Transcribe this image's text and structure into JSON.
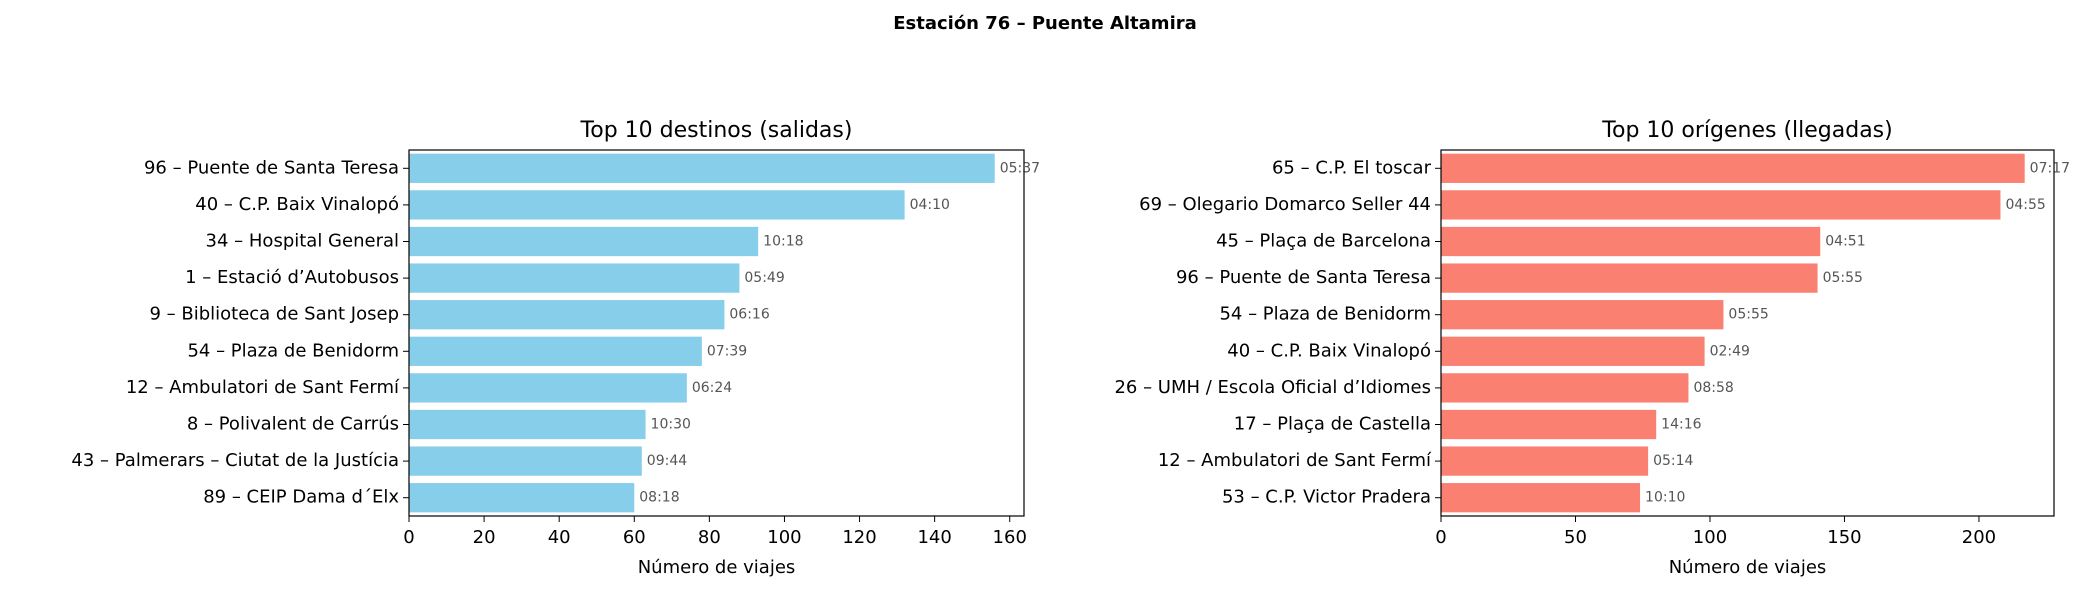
{
  "title": "Estación 76 – Puente Altamira",
  "chart_data": [
    {
      "type": "barh",
      "title": "Top 10 destinos (salidas)",
      "xlabel": "Número de viajes",
      "color": "#87ceeb",
      "categories": [
        "96 – Puente de Santa Teresa",
        "40 – C.P. Baix Vinalopó",
        "34 – Hospital General",
        "1 – Estació d’Autobusos",
        "9 – Biblioteca de Sant Josep",
        "54 – Plaza de Benidorm",
        "12 – Ambulatori de Sant Fermí",
        "8 – Polivalent de Carrús",
        "43 – Palmerars – Ciutat de la Justícia",
        "89 – CEIP Dama d´Elx"
      ],
      "values": [
        156,
        132,
        93,
        88,
        84,
        78,
        74,
        63,
        62,
        60
      ],
      "annotations": [
        "05:37",
        "04:10",
        "10:18",
        "05:49",
        "06:16",
        "07:39",
        "06:24",
        "10:30",
        "09:44",
        "08:18"
      ],
      "xlim": [
        0,
        163.8
      ],
      "xticks": [
        0,
        20,
        40,
        60,
        80,
        100,
        120,
        140,
        160
      ]
    },
    {
      "type": "barh",
      "title": "Top 10 orígenes (llegadas)",
      "xlabel": "Número de viajes",
      "color": "#fa8072",
      "categories": [
        "65 – C.P. El toscar",
        "69 – Olegario Domarco Seller 44",
        "45 – Plaça de Barcelona",
        "96 – Puente de Santa Teresa",
        "54 – Plaza de Benidorm",
        "40 – C.P. Baix Vinalopó",
        "26 – UMH / Escola Oficial d’Idiomes",
        "17 – Plaça de Castella",
        "12 – Ambulatori de Sant Fermí",
        "53 – C.P. Victor Pradera"
      ],
      "values": [
        217,
        208,
        141,
        140,
        105,
        98,
        92,
        80,
        77,
        74
      ],
      "annotations": [
        "07:17",
        "04:55",
        "04:51",
        "05:55",
        "05:55",
        "02:49",
        "08:58",
        "14:16",
        "05:14",
        "10:10"
      ],
      "xlim": [
        0,
        227.9
      ],
      "xticks": [
        0,
        50,
        100,
        150,
        200
      ]
    }
  ]
}
